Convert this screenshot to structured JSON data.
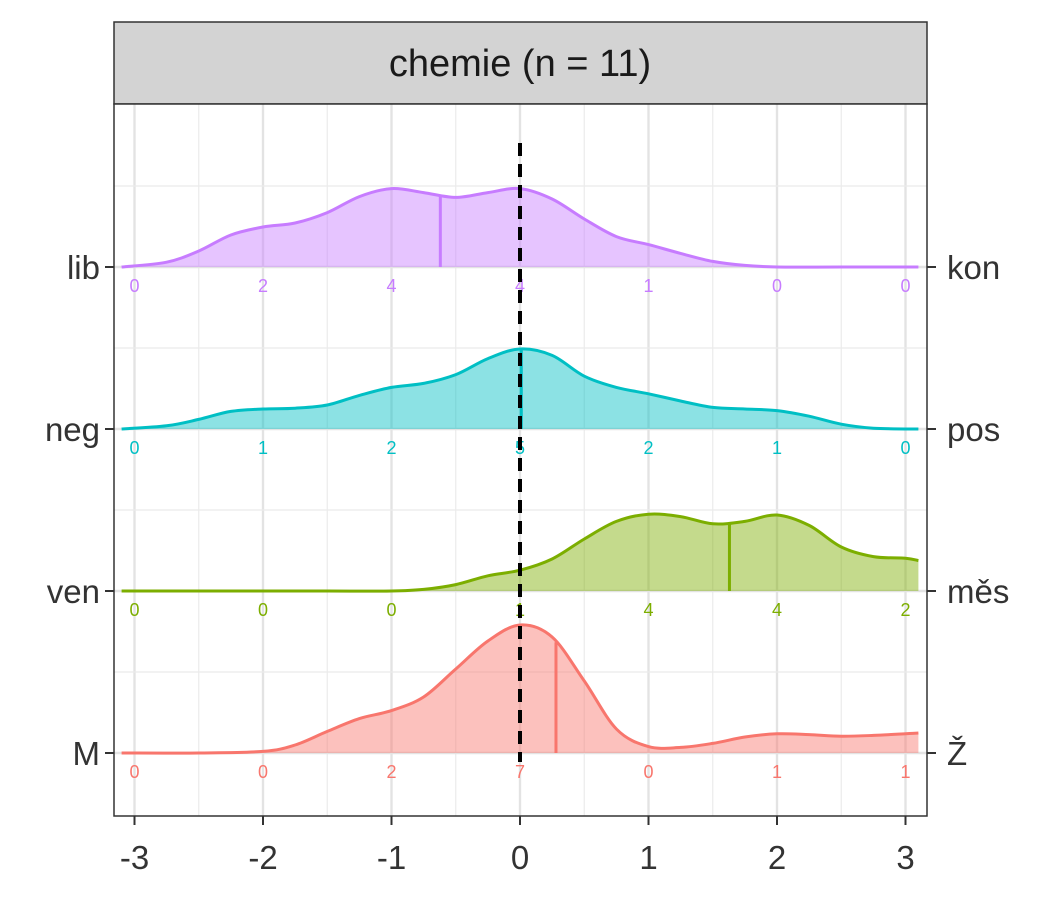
{
  "chart_data": {
    "type": "ridgeline-density",
    "title": "chemie (n = 11)",
    "xlabel": "",
    "ylabel": "",
    "xlim": [
      -3.1,
      3.1
    ],
    "x_ticks": [
      -3,
      -2,
      -1,
      0,
      1,
      2,
      3
    ],
    "x_tick_labels": [
      "-3",
      "-2",
      "-1",
      "0",
      "1",
      "2",
      "3"
    ],
    "reference_line_x": 0,
    "grid": true,
    "count_positions": [
      -3,
      -2,
      -1,
      0,
      1,
      2,
      3
    ],
    "rows": [
      {
        "left_label": "lib",
        "right_label": "kon",
        "color": "#C77CFF",
        "counts": [
          "0",
          "2",
          "4",
          "4",
          "1",
          "0",
          "0"
        ],
        "mean": -0.62,
        "density_x": [
          -3.1,
          -2.75,
          -2.5,
          -2.25,
          -2,
          -1.75,
          -1.5,
          -1.25,
          -1,
          -0.75,
          -0.5,
          -0.25,
          0,
          0.25,
          0.5,
          0.75,
          1,
          1.25,
          1.5,
          1.75,
          2,
          2.5,
          3.1
        ],
        "density_y": [
          0.0,
          0.06,
          0.2,
          0.4,
          0.5,
          0.55,
          0.68,
          0.88,
          0.98,
          0.93,
          0.87,
          0.93,
          0.98,
          0.85,
          0.6,
          0.38,
          0.28,
          0.17,
          0.07,
          0.02,
          0.0,
          0.0,
          0.0
        ]
      },
      {
        "left_label": "neg",
        "right_label": "pos",
        "color": "#00BFC4",
        "counts": [
          "0",
          "1",
          "2",
          "5",
          "2",
          "1",
          "0"
        ],
        "mean": 0.01,
        "density_x": [
          -3.1,
          -2.75,
          -2.5,
          -2.25,
          -2,
          -1.75,
          -1.5,
          -1.25,
          -1,
          -0.75,
          -0.5,
          -0.25,
          0,
          0.25,
          0.5,
          0.75,
          1,
          1.25,
          1.5,
          1.75,
          2,
          2.25,
          2.5,
          2.75,
          3.1
        ],
        "density_y": [
          0.0,
          0.04,
          0.12,
          0.22,
          0.25,
          0.26,
          0.3,
          0.42,
          0.52,
          0.57,
          0.68,
          0.88,
          1.0,
          0.92,
          0.66,
          0.52,
          0.44,
          0.35,
          0.27,
          0.25,
          0.23,
          0.16,
          0.06,
          0.01,
          0.0
        ]
      },
      {
        "left_label": "ven",
        "right_label": "měs",
        "color": "#7CAE00",
        "counts": [
          "0",
          "0",
          "0",
          "1",
          "4",
          "4",
          "2"
        ],
        "mean": 1.63,
        "density_x": [
          -3.1,
          -2,
          -1.5,
          -1,
          -0.75,
          -0.5,
          -0.25,
          0,
          0.25,
          0.5,
          0.75,
          1,
          1.25,
          1.5,
          1.75,
          2,
          2.25,
          2.5,
          2.75,
          3,
          3.1
        ],
        "density_y": [
          0.0,
          0.0,
          0.0,
          0.0,
          0.02,
          0.08,
          0.19,
          0.26,
          0.4,
          0.65,
          0.87,
          0.96,
          0.93,
          0.84,
          0.87,
          0.95,
          0.82,
          0.55,
          0.43,
          0.41,
          0.38
        ]
      },
      {
        "left_label": "M",
        "right_label": "Ž",
        "color": "#F8766D",
        "counts": [
          "0",
          "0",
          "2",
          "7",
          "0",
          "1",
          "1"
        ],
        "mean": 0.28,
        "density_x": [
          -3.1,
          -2.5,
          -2,
          -1.75,
          -1.5,
          -1.25,
          -1,
          -0.75,
          -0.5,
          -0.25,
          0,
          0.25,
          0.5,
          0.75,
          1,
          1.25,
          1.5,
          1.75,
          2,
          2.25,
          2.5,
          2.75,
          3.1
        ],
        "density_y": [
          0.0,
          0.0,
          0.02,
          0.1,
          0.27,
          0.43,
          0.53,
          0.7,
          1.05,
          1.4,
          1.6,
          1.45,
          0.9,
          0.3,
          0.08,
          0.07,
          0.12,
          0.2,
          0.24,
          0.23,
          0.21,
          0.22,
          0.25
        ]
      }
    ]
  }
}
